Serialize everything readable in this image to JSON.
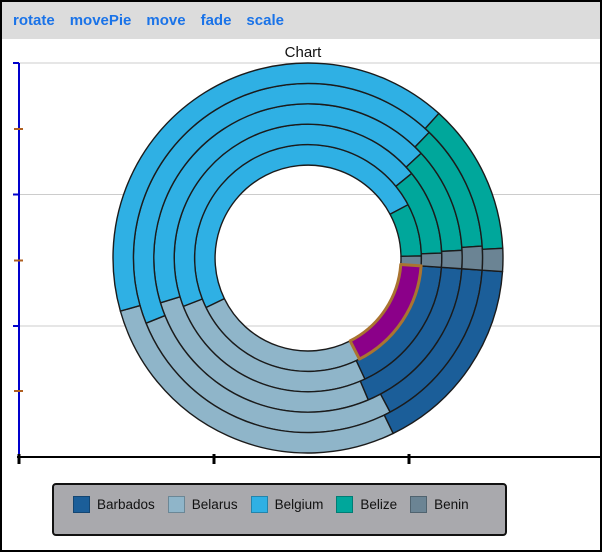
{
  "toolbar": {
    "links": [
      "rotate",
      "movePie",
      "move",
      "fade",
      "scale"
    ]
  },
  "chart": {
    "title": "Chart"
  },
  "legend": {
    "items": [
      {
        "label": "Barbados",
        "color_key": "barbados"
      },
      {
        "label": "Belarus",
        "color_key": "belarus"
      },
      {
        "label": "Belgium",
        "color_key": "belgium"
      },
      {
        "label": "Belize",
        "color_key": "belize"
      },
      {
        "label": "Benin",
        "color_key": "benin"
      }
    ]
  },
  "colors": {
    "barbados": "#1b5e99",
    "belarus": "#8fb5c9",
    "belgium": "#2fb0e4",
    "belize": "#00a79b",
    "benin": "#6b8494",
    "highlight_fill": "#8b0089",
    "highlight_stroke": "#aa7430",
    "segment_stroke": "#1b1b1b",
    "axis_y_blue": "#0000cc",
    "axis_x_black": "#000000",
    "minor_tick_orange": "#b06020",
    "gridline": "#cccccc",
    "link_blue": "#1a73e8",
    "toolbar_bg": "#dcdcdc",
    "legend_bg": "#a9a9ad"
  },
  "chart_data": {
    "type": "pie",
    "subtype": "nested-donut-5-rings",
    "title": "Chart",
    "categories": [
      "Barbados",
      "Belarus",
      "Belgium",
      "Belize",
      "Benin"
    ],
    "series": [
      {
        "name": "ring-1-innermost",
        "values": [
          16.4,
          25.3,
          49.4,
          7.5,
          1.4
        ]
      },
      {
        "name": "ring-2",
        "values": [
          16.9,
          26.1,
          45.0,
          10.3,
          1.7
        ]
      },
      {
        "name": "ring-3",
        "values": [
          17.5,
          26.7,
          42.8,
          11.1,
          1.9
        ]
      },
      {
        "name": "ring-4",
        "values": [
          16.1,
          26.7,
          43.3,
          11.7,
          2.2
        ]
      },
      {
        "name": "ring-5-outermost",
        "values": [
          16.7,
          27.8,
          41.1,
          12.5,
          1.9
        ]
      }
    ],
    "unit": "percent",
    "direction": "clockwise",
    "start_angle_deg_clockwise_from_12": 94,
    "grid": "horizontal-gridlines-only",
    "legend_position": "bottom",
    "highlight": {
      "series_index": 0,
      "category": "Barbados",
      "note": "inner-ring slice shown purple with brown outline"
    }
  }
}
